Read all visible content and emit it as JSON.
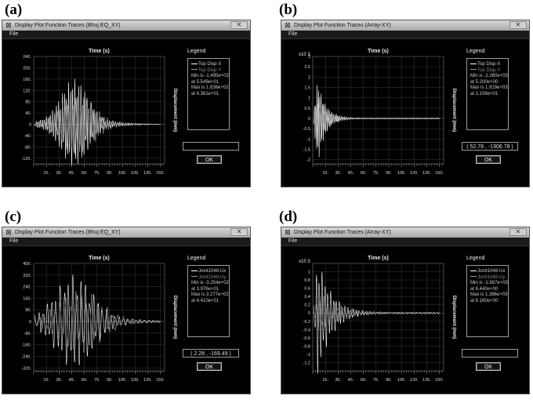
{
  "panels": [
    {
      "letter": "(a)",
      "title": "Display Plot Function Traces  (Bhuj EQ_XY)",
      "menu_file": "File",
      "legend_title": "Legend",
      "legend_lines": [
        "Top Disp-X",
        "Top Disp-Y",
        "Min is -1.495e+02",
        "at 5.549e+01",
        "Max is 1.636e+02",
        "at 4.361e+01"
      ],
      "coord_readout": "",
      "ok_label": "OK",
      "close_glyph": "✕",
      "chart_data": {
        "type": "line",
        "title": "Time (s)",
        "ylabel": "Displacement (mm)",
        "y_multiplier": "",
        "xlim": [
          0,
          155
        ],
        "ylim": [
          -140,
          240
        ],
        "x_ticks": [
          "15.",
          "30.",
          "45.",
          "60.",
          "75.",
          "90.",
          "105.",
          "120.",
          "135.",
          "150."
        ],
        "y_ticks": [
          "240.",
          "200.",
          "160.",
          "120.",
          "80.",
          "40.",
          "0",
          "-40.",
          "-80.",
          "-120."
        ],
        "series": [
          {
            "name": "Top Disp-X",
            "color": "#ffffff",
            "peak": 163.6,
            "trough": -149.5,
            "envelope": "bell",
            "center": 48,
            "width": 22,
            "period": 2.4
          },
          {
            "name": "Top Disp-Y",
            "color": "#a0a0a0",
            "peak": 110,
            "trough": -110,
            "envelope": "bell",
            "center": 52,
            "width": 26,
            "period": 3.1
          }
        ]
      }
    },
    {
      "letter": "(b)",
      "title": "Display Plot Function Traces  (Array-XY)",
      "menu_file": "File",
      "legend_title": "Legend",
      "legend_lines": [
        "Top Disp-X",
        "Top Disp-Y",
        "Min is -2.260e+03",
        "at 5.200e+00",
        "Max is 1.919e+03",
        "at 1.108e+01"
      ],
      "coord_readout": "( 52.78 , -1906.78 )",
      "ok_label": "OK",
      "close_glyph": "✕",
      "chart_data": {
        "type": "line",
        "title": "Time (s)",
        "ylabel": "Displacement (mm)",
        "y_multiplier": "x10 3",
        "xlim": [
          0,
          155
        ],
        "ylim": [
          -2.2,
          3
        ],
        "x_ticks": [
          "15.",
          "30.",
          "45.",
          "60.",
          "75.",
          "90.",
          "105.",
          "120.",
          "135.",
          "150."
        ],
        "y_ticks": [
          "3",
          "2.5",
          "2",
          "1.5",
          "1",
          "0.5",
          "0",
          "-0.5",
          "-1",
          "-1.5",
          "-2"
        ],
        "series": [
          {
            "name": "Top Disp-X",
            "color": "#ffffff",
            "peak": 1.919,
            "trough": -2.26,
            "envelope": "decay",
            "center": 6,
            "width": 9,
            "period": 1.6
          },
          {
            "name": "Top Disp-Y",
            "color": "#a0a0a0",
            "peak": 0.9,
            "trough": -0.9,
            "envelope": "decay",
            "center": 8,
            "width": 14,
            "period": 2.0
          }
        ]
      }
    },
    {
      "letter": "(c)",
      "title": "Display Plot Function Traces  (Bhuj EQ_XY)",
      "menu_file": "File",
      "legend_title": "Legend",
      "legend_lines": [
        "Joint1048-Ux",
        "Joint1048-Uy",
        "Min is -3.254e+02",
        "at 3.976e+01",
        "Max is 3.277e+02",
        "at 4.410e+01"
      ],
      "coord_readout": "( 2.28 , -169.49 )",
      "ok_label": "OK",
      "close_glyph": "✕",
      "chart_data": {
        "type": "line",
        "title": "Time (s)",
        "ylabel": "Displacement (mm)",
        "y_multiplier": "",
        "xlim": [
          0,
          155
        ],
        "ylim": [
          -340,
          400
        ],
        "x_ticks": [
          "15.",
          "30.",
          "45.",
          "60.",
          "75.",
          "90.",
          "105.",
          "120.",
          "135.",
          "150."
        ],
        "y_ticks": [
          "400.",
          "320.",
          "240.",
          "160.",
          "80.",
          "0",
          "-80.",
          "-160.",
          "-240.",
          "-320."
        ],
        "series": [
          {
            "name": "Joint1048-Ux",
            "color": "#ffffff",
            "peak": 327.7,
            "trough": -325.4,
            "envelope": "bell",
            "center": 48,
            "width": 30,
            "period": 5.0
          },
          {
            "name": "Joint1048-Uy",
            "color": "#a0a0a0",
            "peak": 220,
            "trough": -220,
            "envelope": "bell",
            "center": 55,
            "width": 34,
            "period": 6.2
          }
        ]
      }
    },
    {
      "letter": "(d)",
      "title": "Display Plot Function Traces  (Array-XY)",
      "menu_file": "File",
      "legend_title": "Legend",
      "legend_lines": [
        "Joint1048-Ux",
        "Joint1048-Uy",
        "Min is -1.567e+03",
        "at 6.440e+00",
        "Max is 1.386e+03",
        "at 8.160e+00"
      ],
      "coord_readout": "",
      "ok_label": "OK",
      "close_glyph": "✕",
      "chart_data": {
        "type": "line",
        "title": "Time (s)",
        "ylabel": "Displacement (mm)",
        "y_multiplier": "x10 3",
        "xlim": [
          0,
          155
        ],
        "ylim": [
          -1.4,
          1.2
        ],
        "x_ticks": [
          "15.",
          "30.",
          "45.",
          "60.",
          "75.",
          "90.",
          "105.",
          "120.",
          "135.",
          "150."
        ],
        "y_ticks": [
          "1",
          "0.8",
          "0.6",
          "0.4",
          "0.2",
          "0",
          "-0.2",
          "-0.4",
          "-0.6",
          "-0.8",
          "-1",
          "-1.2"
        ],
        "series": [
          {
            "name": "Joint1048-Ux",
            "color": "#ffffff",
            "peak": 1.386,
            "trough": -1.567,
            "envelope": "decay",
            "center": 6,
            "width": 16,
            "period": 3.4
          },
          {
            "name": "Joint1048-Uy",
            "color": "#a0a0a0",
            "peak": 0.5,
            "trough": -0.5,
            "envelope": "decay",
            "center": 8,
            "width": 26,
            "period": 4.2
          }
        ]
      }
    }
  ]
}
